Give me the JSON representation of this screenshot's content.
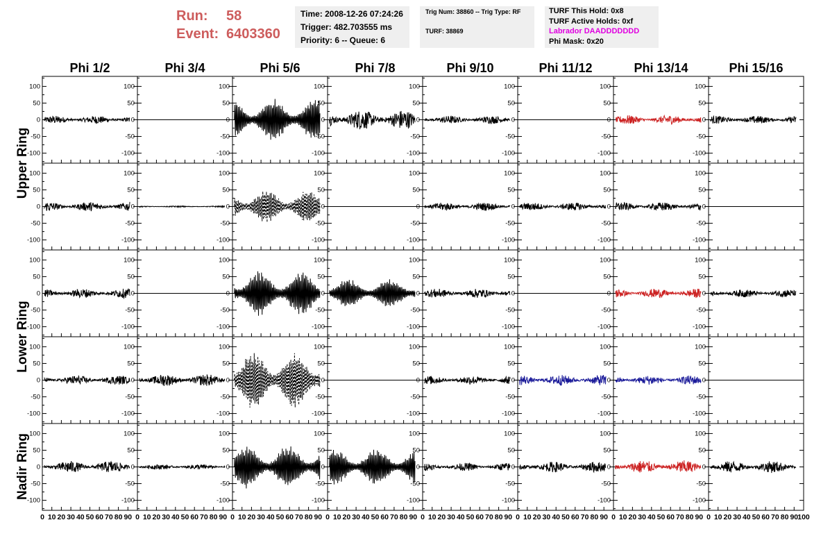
{
  "header": {
    "run_label": "Run:",
    "run_value": "58",
    "event_label": "Event:",
    "event_value": "6403360",
    "time": "Time: 2008-12-26 07:24:26",
    "trigger": "Trigger: 482.703555 ms",
    "priority": "Priority: 6 -- Queue: 6",
    "trig_num": "Trig Num: 38860 -- Trig Type: RF",
    "turf": "TURF: 38869",
    "turf_this_hold": "TURF This Hold: 0x8",
    "turf_active_holds": "TURF Active Holds: 0xf",
    "labrador": "Labrador DAADDDDDDD",
    "phi_mask": "Phi Mask: 0x20"
  },
  "colors": {
    "trace": "#000000",
    "red": "#cc2222",
    "blue": "#1a1a99",
    "title_red": "#cd5c5c",
    "magenta": "#e000e0"
  },
  "chart_data": {
    "type": "line",
    "columns": [
      "Phi 1/2",
      "Phi 3/4",
      "Phi 5/6",
      "Phi 7/8",
      "Phi 9/10",
      "Phi 11/12",
      "Phi 13/14",
      "Phi 15/16"
    ],
    "ring_labels": [
      "Upper Ring",
      "Lower Ring",
      "Nadir Ring"
    ],
    "ylim": [
      -130,
      130
    ],
    "xlim": [
      0,
      100
    ],
    "yticks": [
      -100,
      -50,
      0,
      50,
      100
    ],
    "xticks": [
      0,
      10,
      20,
      30,
      40,
      50,
      60,
      70,
      80,
      90,
      100
    ],
    "panels": [
      [
        {
          "a": 12,
          "s": "solid",
          "c": "black"
        },
        {
          "a": 0,
          "s": "flat",
          "c": "black"
        },
        {
          "a": 65,
          "s": "solid",
          "c": "black"
        },
        {
          "a": 30,
          "s": "solid",
          "c": "black"
        },
        {
          "a": 12,
          "s": "solid",
          "c": "black"
        },
        {
          "a": 0,
          "s": "flat",
          "c": "black"
        },
        {
          "a": 14,
          "s": "solid",
          "c": "red"
        },
        {
          "a": 12,
          "s": "solid",
          "c": "black"
        }
      ],
      [
        {
          "a": 14,
          "s": "solid",
          "c": "black"
        },
        {
          "a": 2,
          "s": "solid",
          "c": "black"
        },
        {
          "a": 50,
          "s": "dashed",
          "c": "black"
        },
        {
          "a": 0,
          "s": "flat",
          "c": "black"
        },
        {
          "a": 12,
          "s": "solid",
          "c": "black"
        },
        {
          "a": 12,
          "s": "solid",
          "c": "black"
        },
        {
          "a": 13,
          "s": "solid",
          "c": "black"
        },
        {
          "a": 0,
          "s": "flat",
          "c": "black"
        }
      ],
      [
        {
          "a": 14,
          "s": "solid",
          "c": "black"
        },
        {
          "a": 0,
          "s": "flat",
          "c": "black"
        },
        {
          "a": 70,
          "s": "solid",
          "c": "black"
        },
        {
          "a": 45,
          "s": "solid",
          "c": "black"
        },
        {
          "a": 14,
          "s": "solid",
          "c": "black"
        },
        {
          "a": 0,
          "s": "flat",
          "c": "black"
        },
        {
          "a": 14,
          "s": "solid",
          "c": "red"
        },
        {
          "a": 12,
          "s": "solid",
          "c": "black"
        }
      ],
      [
        {
          "a": 14,
          "s": "solid",
          "c": "black"
        },
        {
          "a": 18,
          "s": "solid",
          "c": "black"
        },
        {
          "a": 90,
          "s": "dashed",
          "c": "black"
        },
        {
          "a": 0,
          "s": "flat",
          "c": "black"
        },
        {
          "a": 13,
          "s": "solid",
          "c": "black"
        },
        {
          "a": 16,
          "s": "solid",
          "c": "blue"
        },
        {
          "a": 14,
          "s": "solid",
          "c": "blue"
        },
        {
          "a": 0,
          "s": "flat",
          "c": "black"
        }
      ],
      [
        {
          "a": 18,
          "s": "solid",
          "c": "black"
        },
        {
          "a": 8,
          "s": "solid",
          "c": "black"
        },
        {
          "a": 65,
          "s": "solid",
          "c": "black"
        },
        {
          "a": 55,
          "s": "solid",
          "c": "black"
        },
        {
          "a": 12,
          "s": "solid",
          "c": "black"
        },
        {
          "a": 16,
          "s": "solid",
          "c": "black"
        },
        {
          "a": 20,
          "s": "solid",
          "c": "red"
        },
        {
          "a": 18,
          "s": "solid",
          "c": "black"
        }
      ]
    ]
  }
}
